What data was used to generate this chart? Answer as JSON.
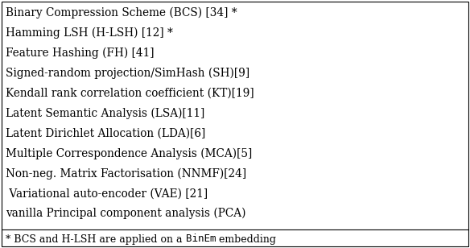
{
  "lines": [
    "Binary Compression Scheme (BCS) [34] *",
    "Hamming LSH (H-LSH) [12] *",
    "Feature Hashing (FH) [41]",
    "Signed-random projection/SimHash (SH)[9]",
    "Kendall rank correlation coefficient (KT)[19]",
    "Latent Semantic Analysis (LSA)[11]",
    "Latent Dirichlet Allocation (LDA)[6]",
    "Multiple Correspondence Analysis (MCA)[5]",
    "Non-neg. Matrix Factorisation (NNMF)[24]",
    " Variational auto-encoder (VAE) [21]",
    "vanilla Principal component analysis (PCA)"
  ],
  "footnote_regular": "* BCS and H-LSH are applied on a ",
  "footnote_mono": "BinEm",
  "footnote_end": " embedding",
  "bg_color": "#ffffff",
  "text_color": "#000000",
  "border_color": "#000000",
  "font_size": 9.8,
  "footnote_font_size": 9.0,
  "fig_width": 5.84,
  "fig_height": 3.08,
  "dpi": 100
}
